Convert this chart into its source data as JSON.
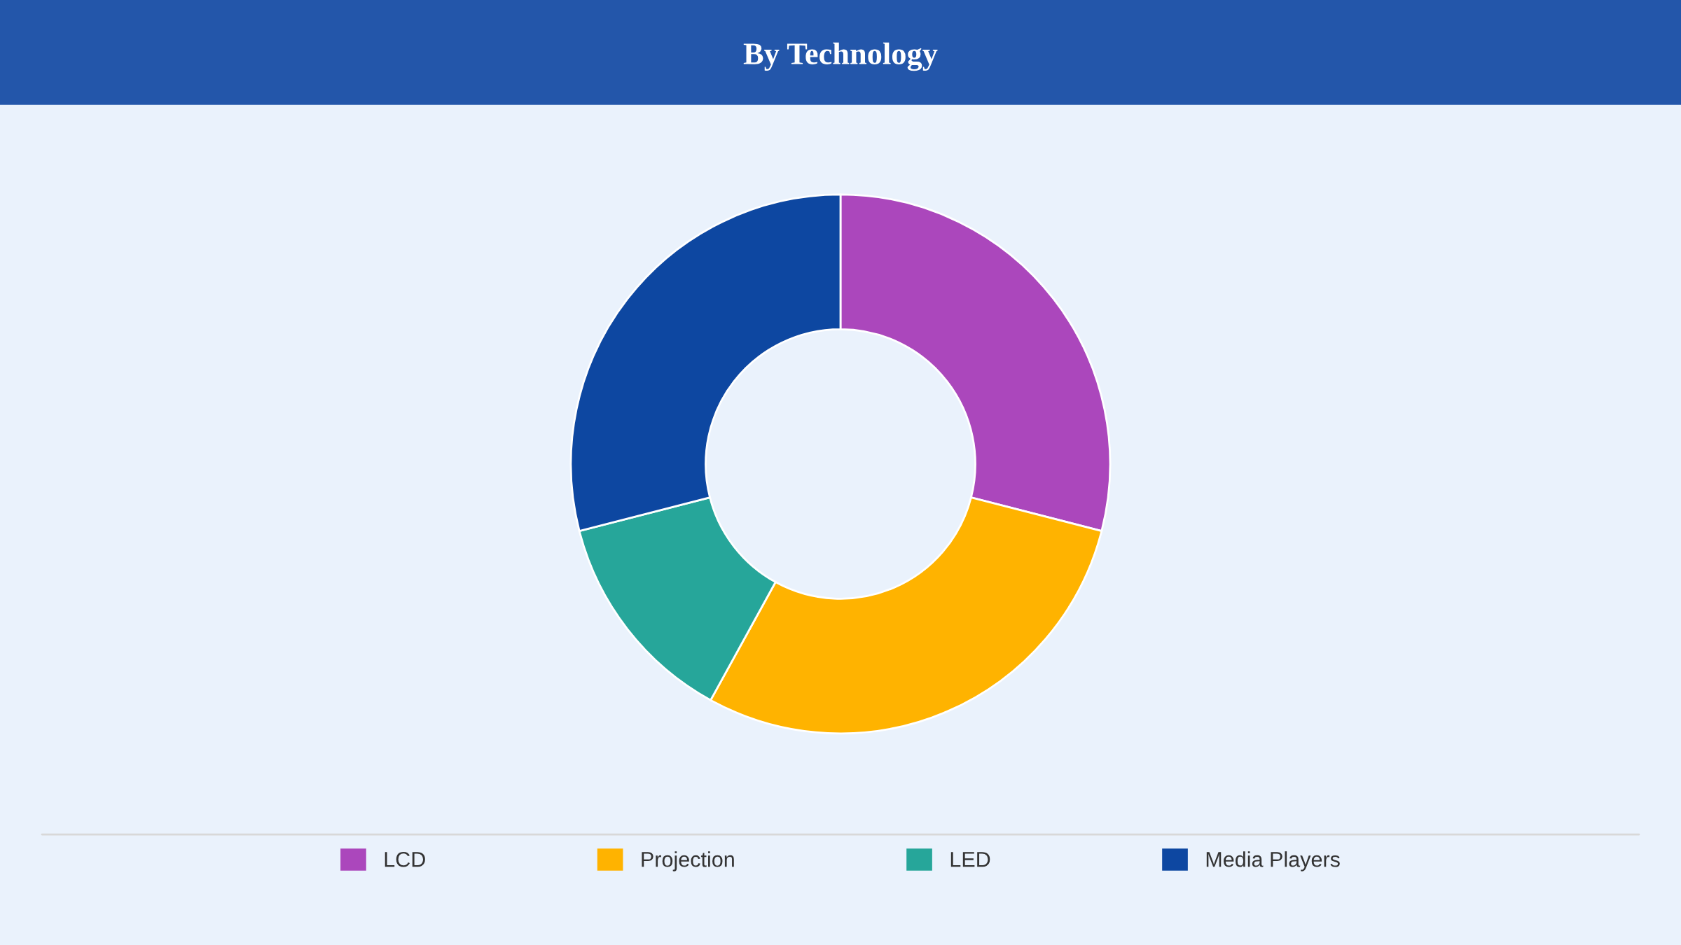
{
  "chart_data": {
    "type": "donut",
    "title": "By Technology",
    "categories": [
      "LCD",
      "Projection",
      "LED",
      "Media Players"
    ],
    "values": [
      29,
      29,
      13,
      29
    ],
    "colors": [
      "#ab47bc",
      "#ffb300",
      "#26a69a",
      "#0d47a1"
    ],
    "legend": "bottom"
  }
}
